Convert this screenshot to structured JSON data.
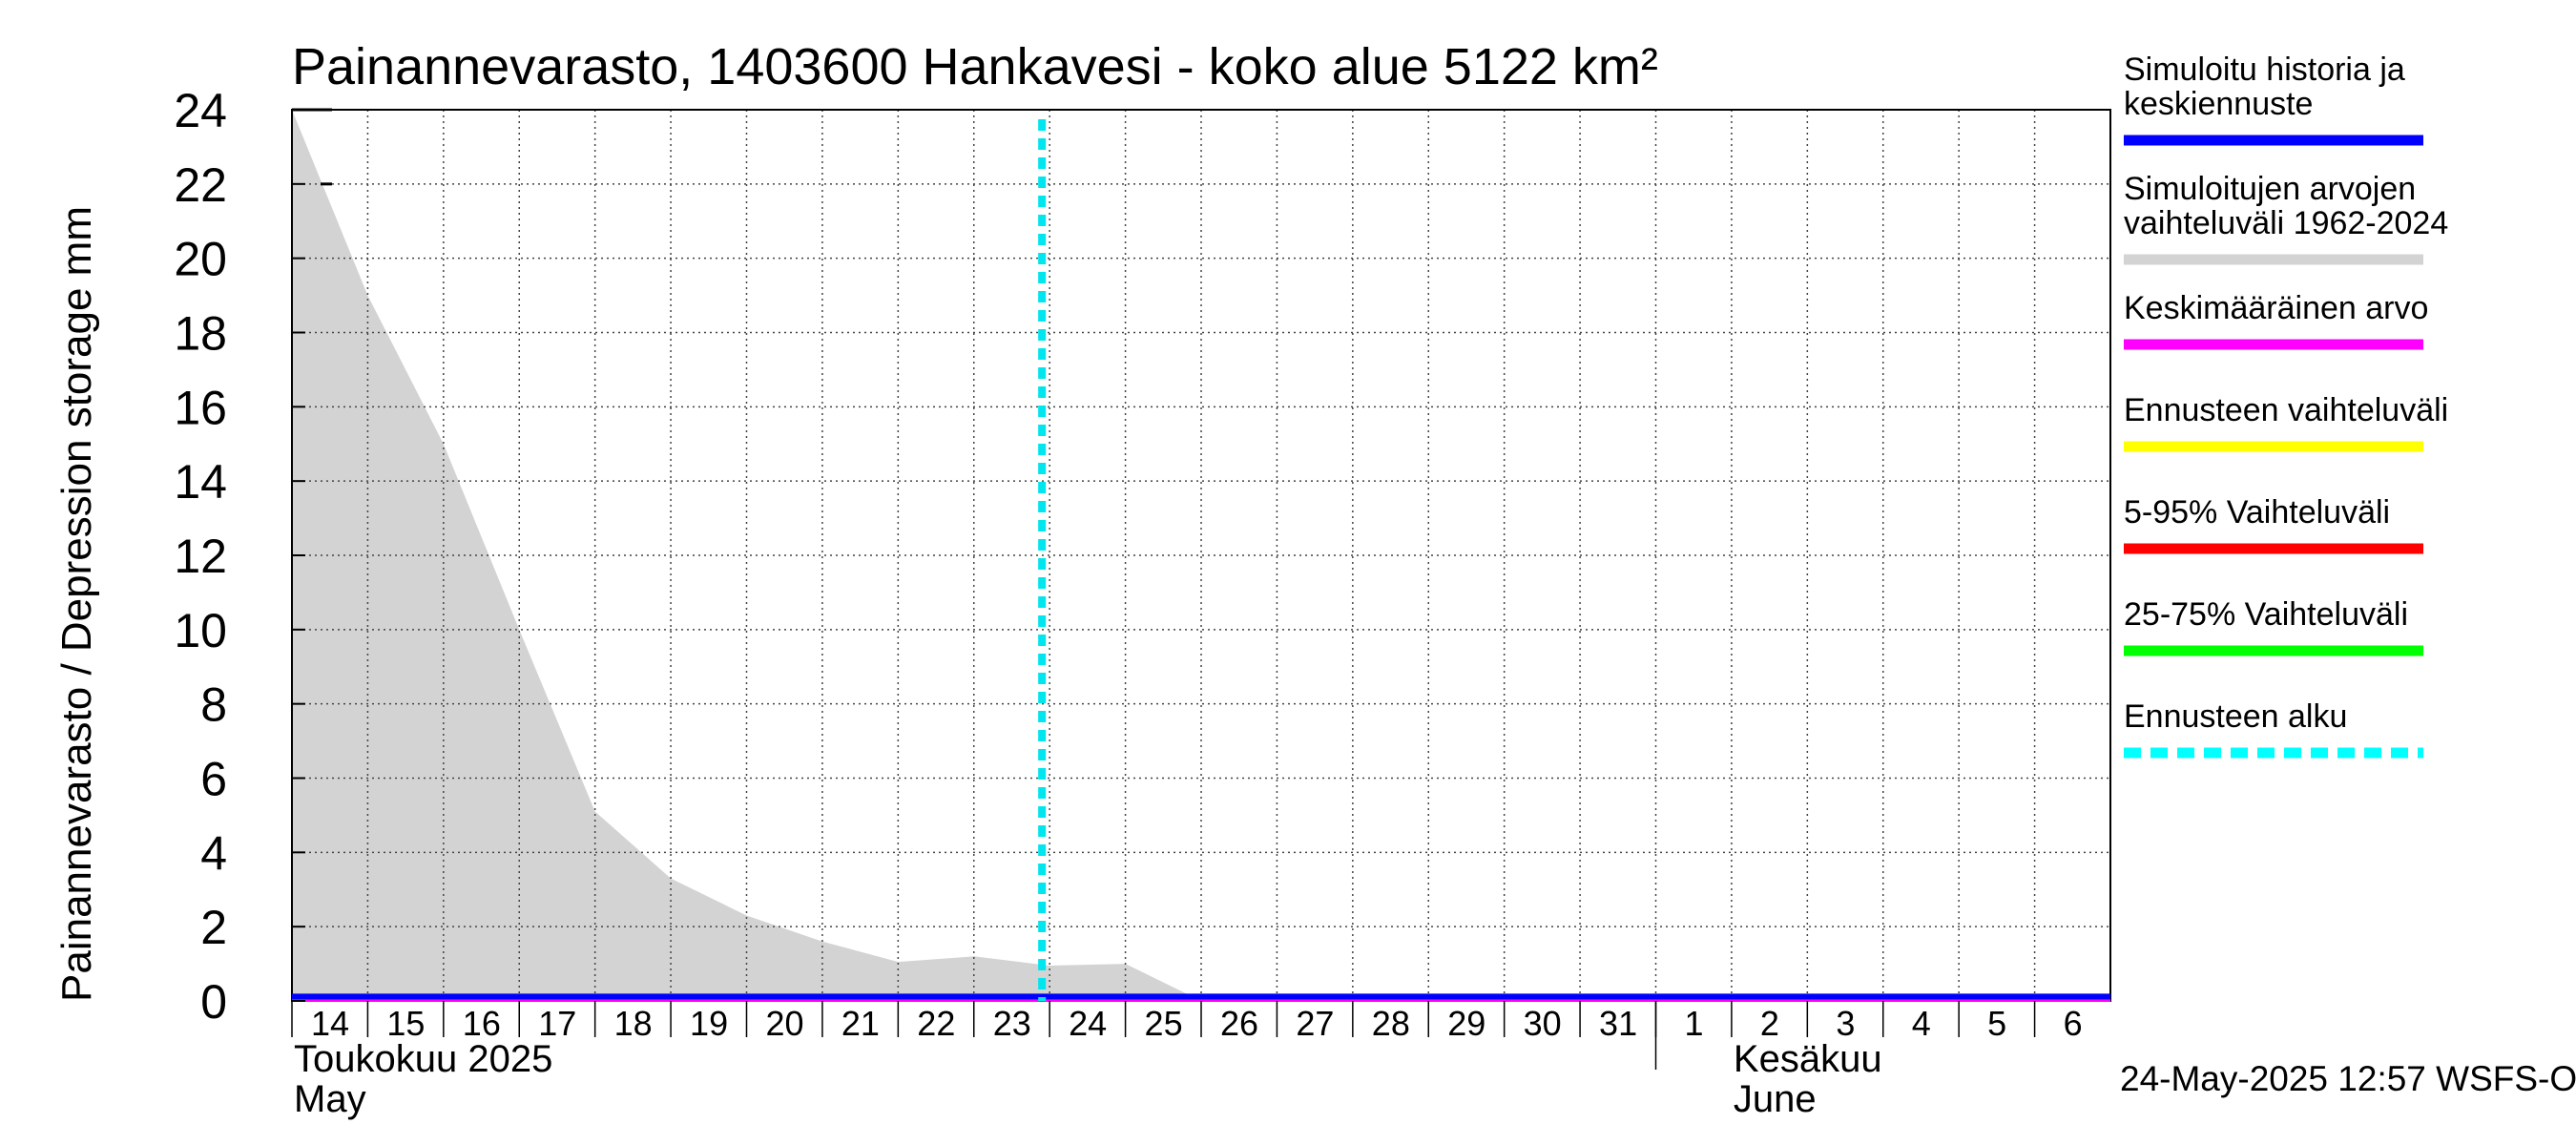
{
  "chart_data": {
    "type": "area",
    "title": "Painannevarasto, 1403600 Hankavesi - koko alue 5122 km²",
    "ylabel": "Painannevarasto / Depression storage    mm",
    "ylim": [
      0,
      24
    ],
    "yticks": [
      0,
      2,
      4,
      6,
      8,
      10,
      12,
      14,
      16,
      18,
      20,
      22,
      24
    ],
    "x_days": [
      "14",
      "15",
      "16",
      "17",
      "18",
      "19",
      "20",
      "21",
      "22",
      "23",
      "24",
      "25",
      "26",
      "27",
      "28",
      "29",
      "30",
      "31",
      "1",
      "2",
      "3",
      "4",
      "5",
      "6"
    ],
    "xlim_days": [
      0,
      24
    ],
    "month_labels": [
      {
        "line1": "Toukokuu  2025",
        "line2": "May",
        "day_index": 0
      },
      {
        "line1": "Kesäkuu",
        "line2": "June",
        "day_index": 19
      }
    ],
    "forecast_start_day": 10,
    "series": [
      {
        "name": "Simuloitujen arvojen vaihteluväli 1962-2024",
        "kind": "range",
        "color": "#d3d3d3",
        "x": [
          0,
          1,
          2,
          3,
          4,
          5,
          6,
          7,
          8,
          9,
          10,
          11,
          12,
          24
        ],
        "low": [
          0,
          0,
          0,
          0,
          0,
          0,
          0,
          0,
          0,
          0,
          0,
          0,
          0,
          0
        ],
        "high": [
          24,
          19,
          15,
          10,
          5.1,
          3.3,
          2.3,
          1.6,
          1.05,
          1.2,
          0.95,
          1.0,
          0,
          0
        ]
      },
      {
        "name": "Keskimääräinen arvo",
        "kind": "line",
        "color": "#ff00ff",
        "x": [
          0,
          24
        ],
        "values": [
          0.05,
          0.05
        ]
      },
      {
        "name": "Simuloitu historia ja keskiennuste",
        "kind": "line",
        "color": "#0000ff",
        "x": [
          0,
          24
        ],
        "values": [
          0.12,
          0.12
        ]
      }
    ],
    "legend": [
      {
        "label": "Simuloitu historia ja\nkeskiennuste",
        "color": "#0000ff",
        "style": "solid"
      },
      {
        "label": "Simuloitujen arvojen\nvaihteluväli 1962-2024",
        "color": "#d3d3d3",
        "style": "solid"
      },
      {
        "label": "Keskimääräinen arvo",
        "color": "#ff00ff",
        "style": "solid"
      },
      {
        "label": "Ennusteen vaihteluväli",
        "color": "#ffff00",
        "style": "solid"
      },
      {
        "label": "5-95% Vaihteluväli",
        "color": "#ff0000",
        "style": "solid"
      },
      {
        "label": "25-75% Vaihteluväli",
        "color": "#00ff00",
        "style": "solid"
      },
      {
        "label": "Ennusteen alku",
        "color": "#00ffff",
        "style": "dashed"
      }
    ],
    "footer": "24-May-2025 12:57 WSFS-O"
  }
}
